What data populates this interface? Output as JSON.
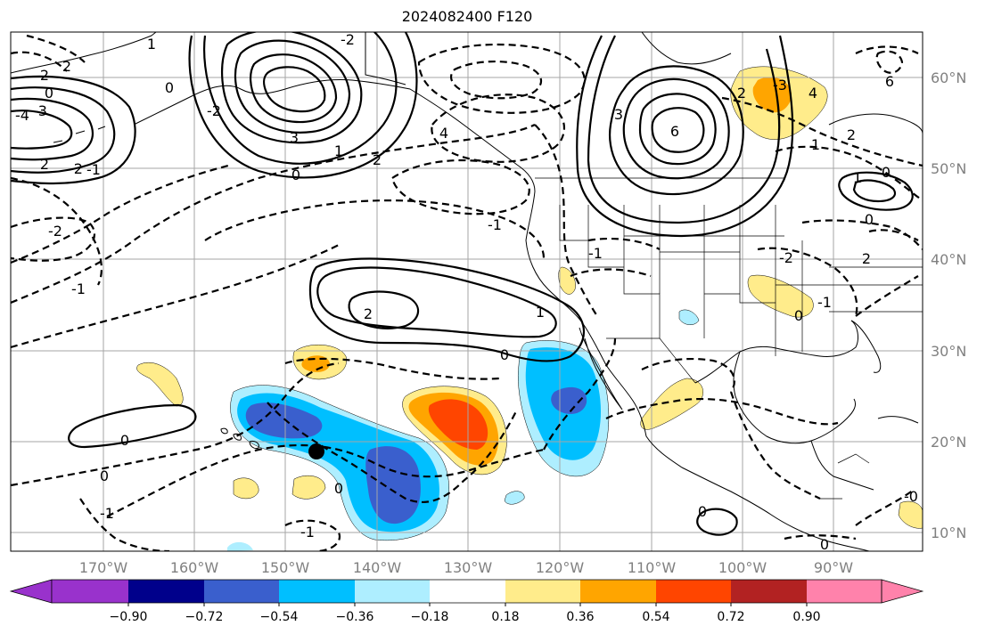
{
  "title": "2024082400 F120",
  "lon_ticks": [
    "170°W",
    "160°W",
    "150°W",
    "140°W",
    "130°W",
    "120°W",
    "110°W",
    "100°W",
    "90°W"
  ],
  "lat_ticks": [
    "60°N",
    "50°N",
    "40°N",
    "30°N",
    "20°N",
    "10°N"
  ],
  "colorbar": {
    "labels": [
      "−0.90",
      "−0.72",
      "−0.54",
      "−0.36",
      "−0.18",
      "0.18",
      "0.36",
      "0.54",
      "0.72",
      "0.90"
    ],
    "colors": [
      "#9932cc",
      "#00008b",
      "#3a5fcd",
      "#00bfff",
      "#aeeeff",
      "#ffffff",
      "#ffec8b",
      "#ffa500",
      "#ff4500",
      "#b22222",
      "#ff82ab"
    ]
  },
  "contour_labels": [
    "2",
    "2",
    "0",
    "-4",
    "-3",
    "2",
    "-2",
    "-1",
    "3",
    "0",
    "1",
    "2",
    "-2",
    "1",
    "0",
    "-2",
    "-1",
    "-2",
    "-1",
    "2",
    "1",
    "0",
    "0",
    "0",
    "-1",
    "0",
    "-1",
    "4",
    "3",
    "6",
    "2",
    "-3",
    "4",
    "1",
    "-1",
    "2",
    "6",
    "-2",
    "1",
    "0",
    "0",
    "-1",
    "2",
    "0",
    "0",
    "0",
    "-0"
  ],
  "marker": {
    "label": "storm-center",
    "lat": 19,
    "lon": -146.5
  }
}
